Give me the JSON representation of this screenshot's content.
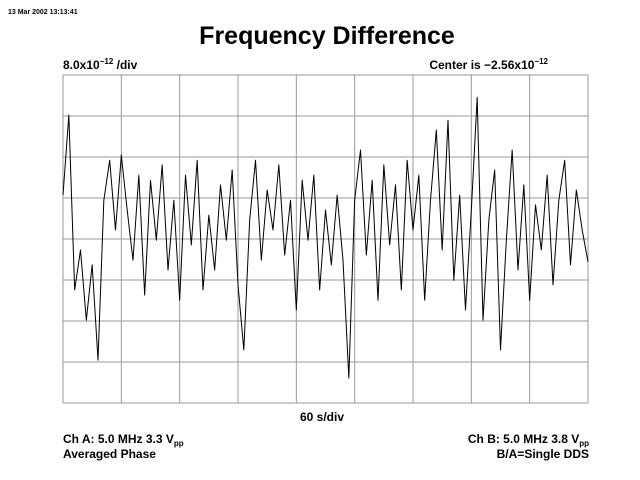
{
  "chart_data": {
    "type": "line",
    "timestamp": "13 Mar 2002 13:13:41",
    "title": "Frequency Difference",
    "scale": {
      "mantissa": "8.0x10",
      "exponent": "−12",
      "unit": " /div"
    },
    "center": {
      "mantissa": "Center is −2.56x10",
      "exponent": "−12"
    },
    "x_label": "60 s/div",
    "channel_a": {
      "text": "Ch A: 5.0 MHz 3.3 V",
      "subscript": "pp",
      "mode": "Averaged Phase"
    },
    "channel_b": {
      "text": "Ch B: 5.0 MHz 3.8 V",
      "subscript": "pp",
      "mode": "B/A=Single DDS"
    },
    "xlim": [
      0,
      540
    ],
    "xticks": [
      0,
      60,
      120,
      180,
      240,
      300,
      360,
      420,
      480,
      540
    ],
    "ylim": [
      -34.56,
      29.44
    ],
    "yticks": [
      -34.56,
      -26.56,
      -18.56,
      -10.56,
      -2.56,
      5.44,
      13.44,
      21.44,
      29.44
    ],
    "grid": true,
    "x": [
      0,
      6,
      12,
      18,
      24,
      30,
      36,
      42,
      48,
      54,
      60,
      66,
      72,
      78,
      84,
      90,
      96,
      102,
      108,
      114,
      120,
      126,
      132,
      138,
      144,
      150,
      156,
      162,
      168,
      174,
      180,
      186,
      192,
      198,
      204,
      210,
      216,
      222,
      228,
      234,
      240,
      246,
      252,
      258,
      264,
      270,
      276,
      282,
      288,
      294,
      300,
      306,
      312,
      318,
      324,
      330,
      336,
      342,
      348,
      354,
      360,
      366,
      372,
      378,
      384,
      390,
      396,
      402,
      408,
      414,
      420,
      426,
      432,
      438,
      444,
      450,
      456,
      462,
      468,
      474,
      480,
      486,
      492,
      498,
      504,
      510,
      516,
      522,
      528,
      534,
      540
    ],
    "series": [
      {
        "color": "#000000",
        "values": [
          6.0,
          21.6,
          -12.5,
          -4.7,
          -18.4,
          -7.6,
          -26.2,
          5.0,
          12.8,
          -0.8,
          13.8,
          3.1,
          -6.7,
          9.9,
          -13.5,
          8.9,
          -2.8,
          11.9,
          -8.6,
          5.0,
          -14.5,
          9.9,
          -3.7,
          12.8,
          -12.5,
          2.1,
          -8.6,
          8.0,
          -2.8,
          10.9,
          -11.5,
          -24.2,
          1.1,
          12.8,
          -6.7,
          7.0,
          -0.8,
          11.9,
          -5.7,
          5.0,
          -16.4,
          8.9,
          -2.8,
          9.9,
          -12.5,
          3.1,
          -7.6,
          6.0,
          -6.7,
          -29.7,
          5.0,
          14.8,
          -5.7,
          8.9,
          -14.5,
          11.9,
          -3.7,
          8.0,
          -12.5,
          12.8,
          -0.8,
          9.9,
          -14.5,
          5.0,
          18.7,
          -4.7,
          20.6,
          -10.6,
          6.0,
          -16.4,
          3.1,
          25.1,
          -18.4,
          1.1,
          10.9,
          -24.2,
          -2.8,
          14.8,
          -8.6,
          8.0,
          -14.5,
          4.1,
          -4.7,
          9.9,
          -11.5,
          5.0,
          12.8,
          -7.6,
          7.0,
          -0.8,
          -7.0
        ]
      }
    ]
  }
}
